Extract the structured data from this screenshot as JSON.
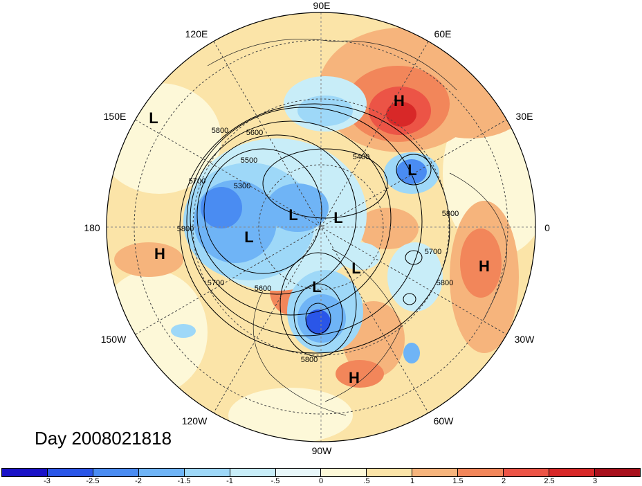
{
  "title": "Day 2008021818",
  "longitude_labels": {
    "lon_90e": "90E",
    "lon_60e": "60E",
    "lon_30e": "30E",
    "lon_0": "0",
    "lon_30w": "30W",
    "lon_60w": "60W",
    "lon_90w": "90W",
    "lon_120w": "120W",
    "lon_150w": "150W",
    "lon_180": "180",
    "lon_150e": "150E",
    "lon_120e": "120E"
  },
  "pressure_centers": [
    {
      "type": "H",
      "label": "H"
    },
    {
      "type": "L",
      "label": "L"
    },
    {
      "type": "L",
      "label": "L"
    },
    {
      "type": "L",
      "label": "L"
    },
    {
      "type": "L",
      "label": "L"
    },
    {
      "type": "L",
      "label": "L"
    },
    {
      "type": "H",
      "label": "H"
    },
    {
      "type": "L",
      "label": "L"
    },
    {
      "type": "L",
      "label": "L"
    },
    {
      "type": "H",
      "label": "H"
    },
    {
      "type": "H",
      "label": "H"
    }
  ],
  "contour_labels": [
    "5800",
    "5600",
    "5500",
    "5300",
    "5400",
    "5700",
    "5800",
    "5700",
    "5600",
    "5800",
    "5800",
    "5700",
    "5800"
  ],
  "colorbar": {
    "colors": [
      "#1a12c8",
      "#2a56e8",
      "#4a8cf2",
      "#6fb4f6",
      "#9ed8f8",
      "#c8edf8",
      "#e8f7fa",
      "#fdf8d8",
      "#fbe4a8",
      "#f6b47c",
      "#f2865a",
      "#ec5446",
      "#d82828",
      "#a8101c"
    ],
    "tick_labels": [
      "-3",
      "-2.5",
      "-2",
      "-1.5",
      "-1",
      "-.5",
      "0",
      ".5",
      "1",
      "1.5",
      "2",
      "2.5",
      "3"
    ]
  }
}
